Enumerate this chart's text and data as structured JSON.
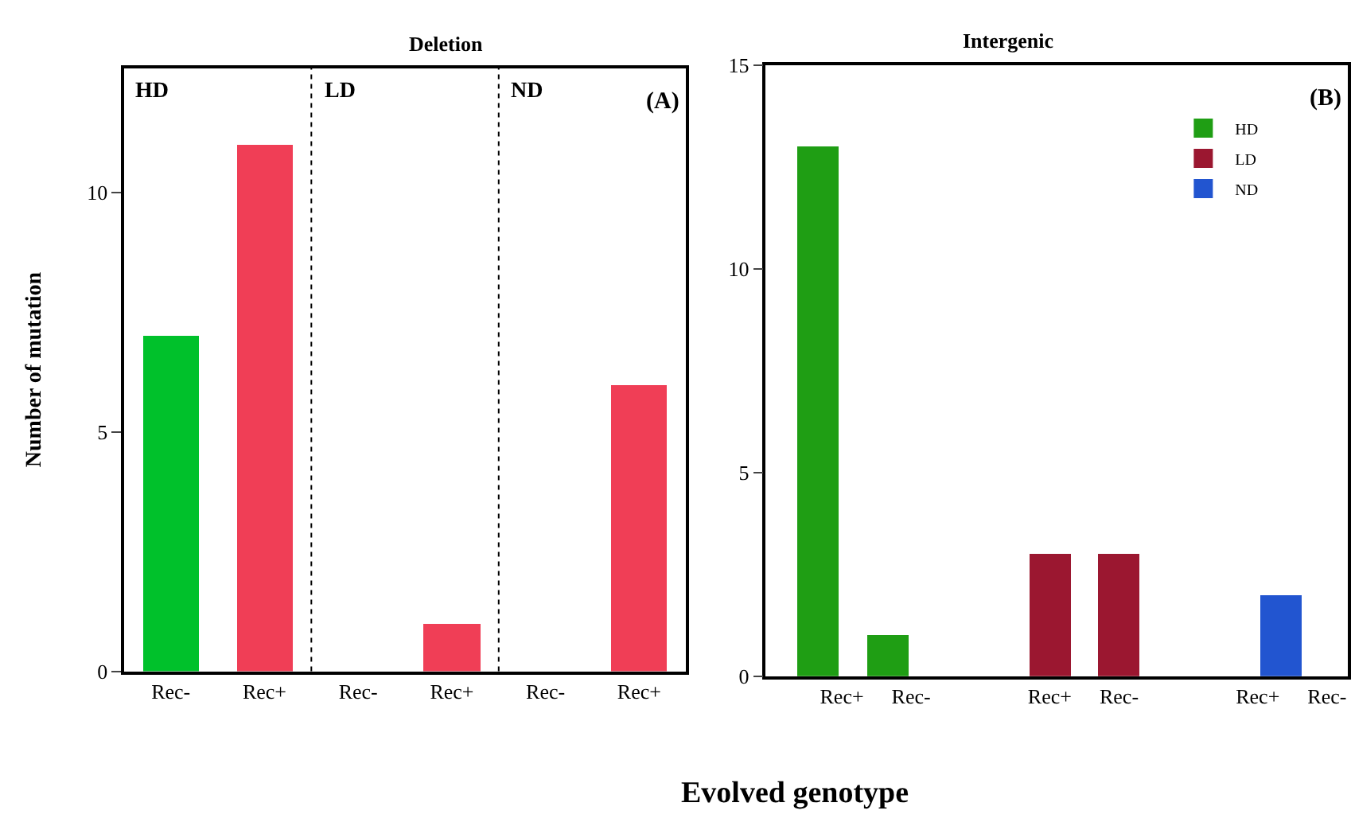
{
  "chart_data": [
    {
      "type": "bar",
      "title": "Deletion",
      "ylabel": "Number of mutation",
      "xlabel": "Evolved genotype",
      "categories": [
        "Rec-",
        "Rec+",
        "Rec-",
        "Rec+",
        "Rec-",
        "Rec+"
      ],
      "values": [
        7,
        11,
        0,
        1,
        0,
        6
      ],
      "colors": [
        "#00c12b",
        "#f03e56",
        "#00c12b",
        "#f03e56",
        "#00c12b",
        "#f03e56"
      ],
      "ylim": [
        0,
        12.6
      ],
      "yticks": [
        0,
        5,
        10
      ],
      "legend": false,
      "annotations": [
        "HD",
        "LD",
        "ND",
        "(A)"
      ]
    },
    {
      "type": "bar",
      "title": "Intergenic",
      "categories": [
        "Rec+",
        "Rec-",
        null,
        "Rec+",
        "Rec-",
        null,
        "Rec+",
        "Rec-"
      ],
      "series": [
        {
          "name": "HD",
          "color": "#1f9e14",
          "values": [
            13,
            1,
            null,
            null,
            null,
            null,
            null,
            null
          ]
        },
        {
          "name": "LD",
          "color": "#9b1730",
          "values": [
            null,
            null,
            null,
            3,
            3,
            null,
            null,
            null
          ]
        },
        {
          "name": "ND",
          "color": "#2255d0",
          "values": [
            null,
            null,
            null,
            null,
            null,
            null,
            2,
            0
          ]
        }
      ],
      "ylim": [
        0,
        15
      ],
      "yticks": [
        0,
        5,
        10,
        15
      ],
      "legend": "top right",
      "annotations": [
        "(B)"
      ]
    }
  ]
}
